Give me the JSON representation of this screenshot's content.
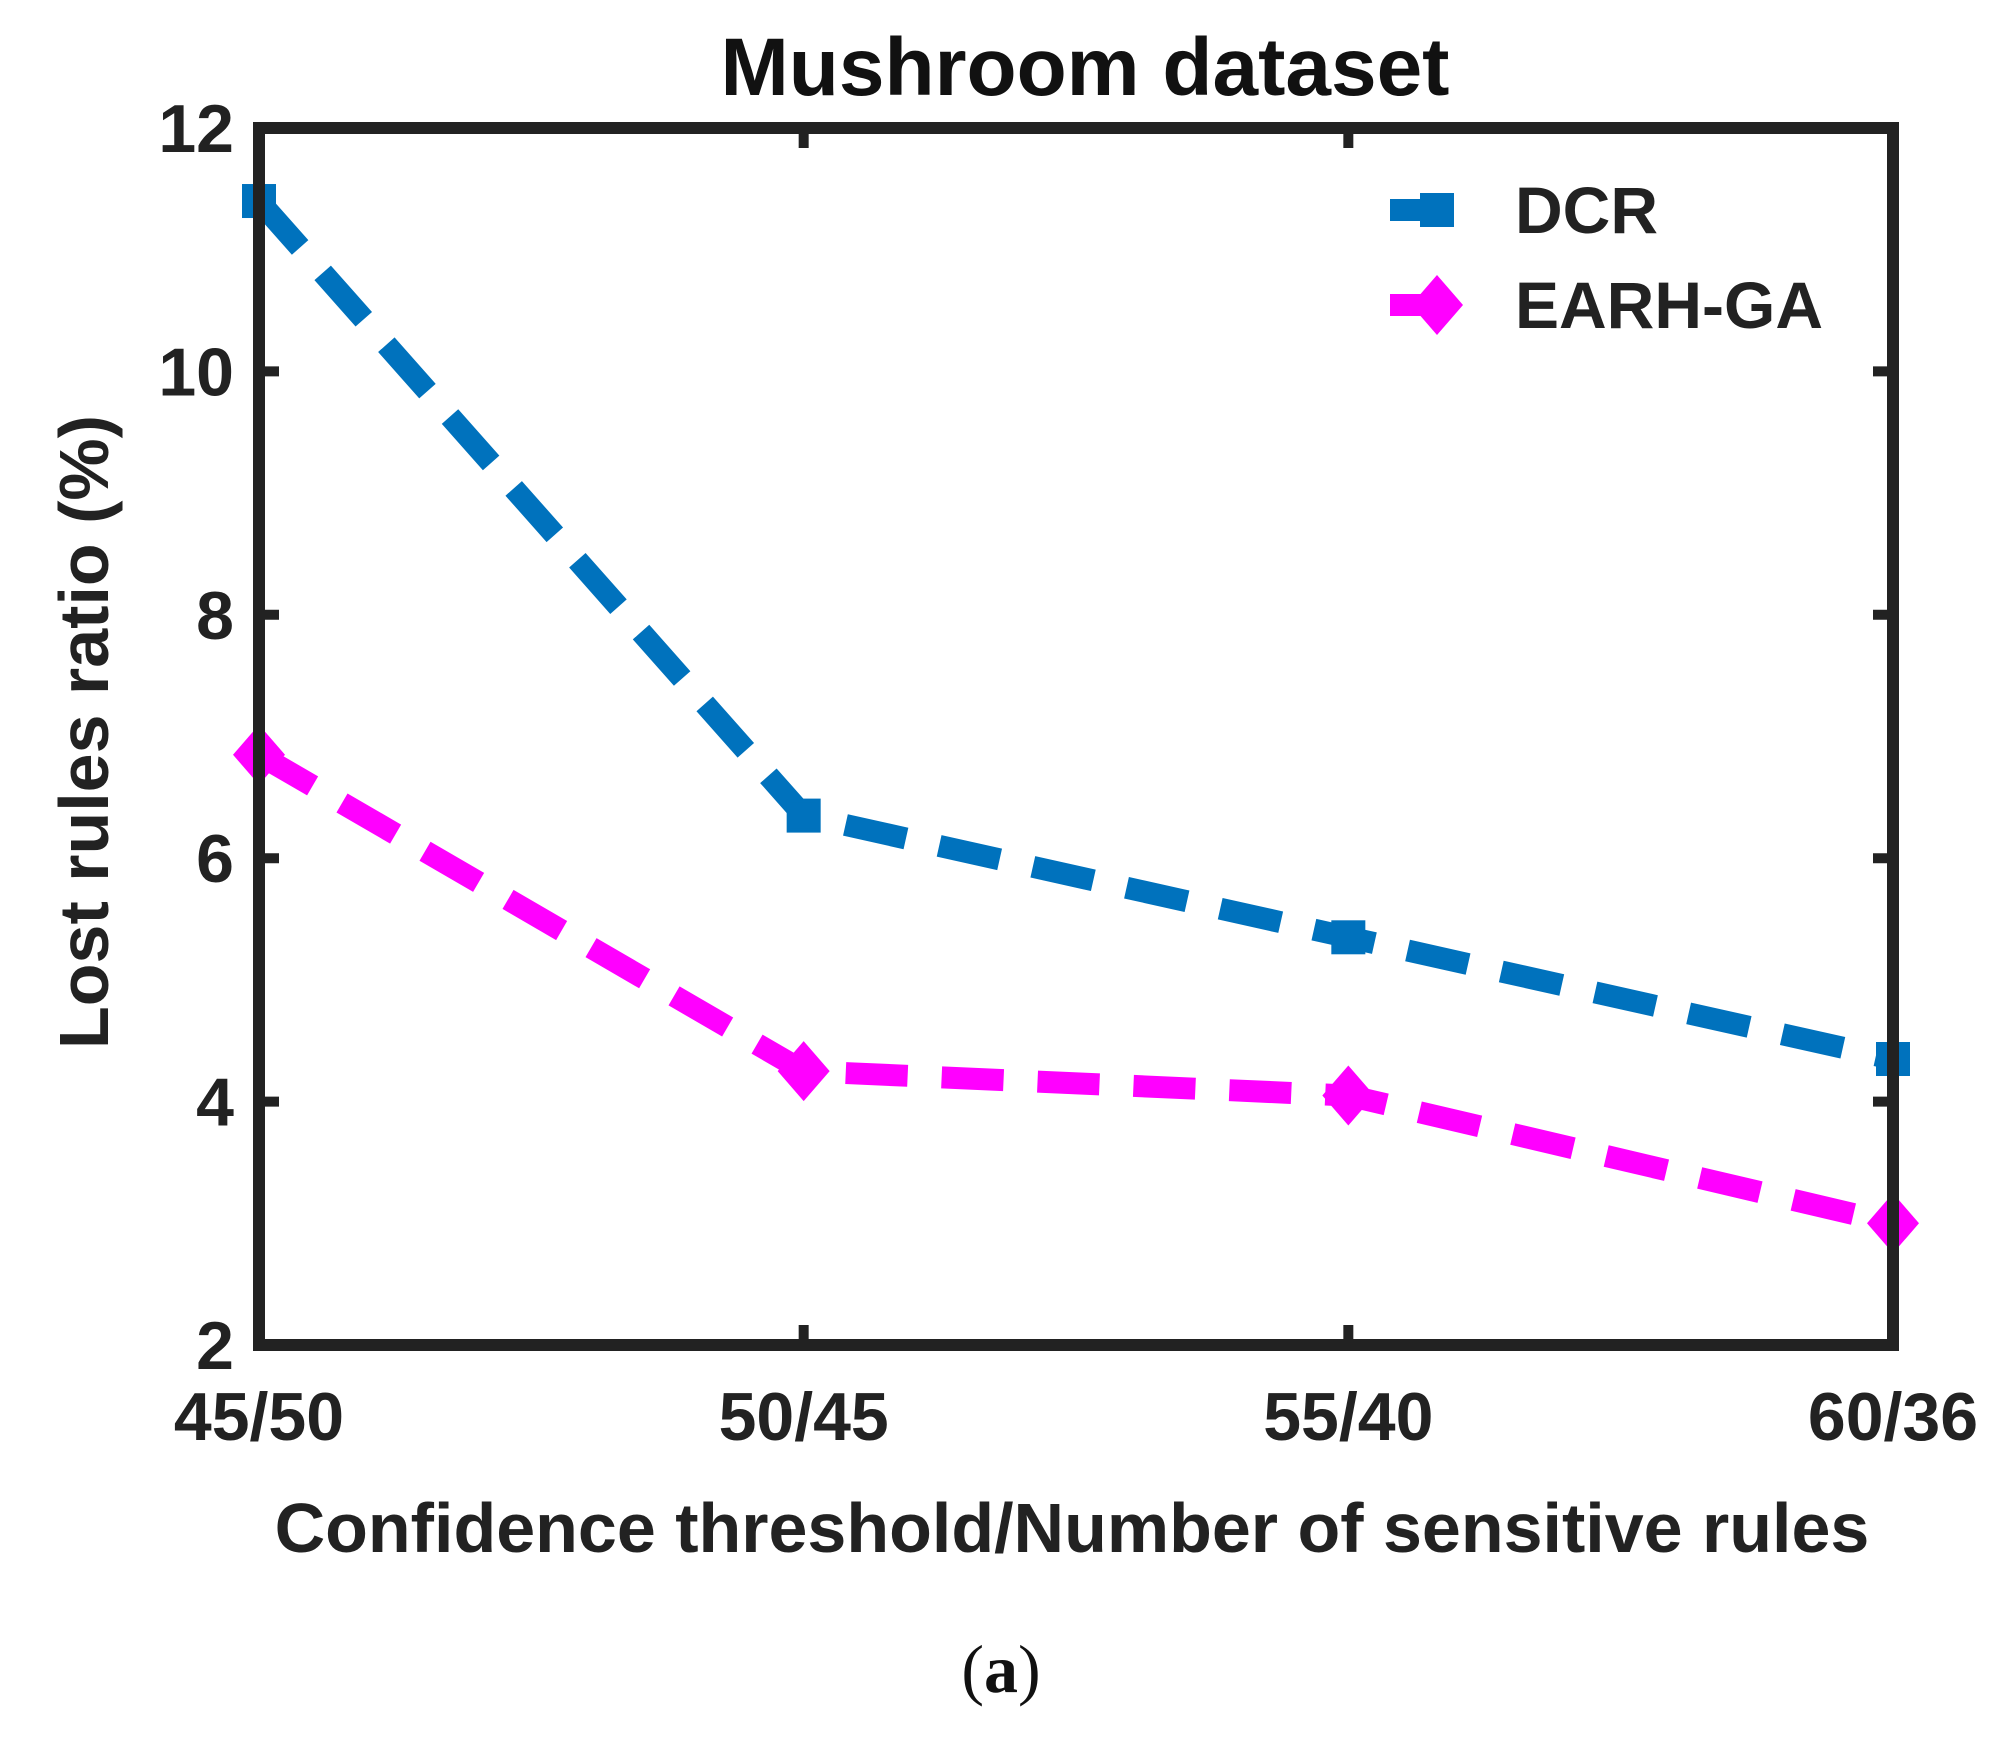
{
  "chart_data": {
    "type": "line",
    "title": "Mushroom dataset",
    "xlabel": "Confidence threshold/Number of sensitive rules",
    "ylabel": "Lost rules ratio (%)",
    "categories": [
      "45/50",
      "50/45",
      "55/40",
      "60/36"
    ],
    "ylim": [
      2,
      12
    ],
    "yticks": [
      2,
      4,
      6,
      8,
      10,
      12
    ],
    "legend_position": "top-right",
    "series": [
      {
        "name": "DCR",
        "values": [
          11.4,
          6.35,
          5.35,
          4.35
        ],
        "color": "#0072BD",
        "marker": "square"
      },
      {
        "name": "EARH-GA",
        "values": [
          6.85,
          4.25,
          4.05,
          3.0
        ],
        "color": "#FF00FF",
        "marker": "diamond"
      }
    ]
  },
  "caption": {
    "open": "(",
    "label": "a",
    "close": ")"
  }
}
